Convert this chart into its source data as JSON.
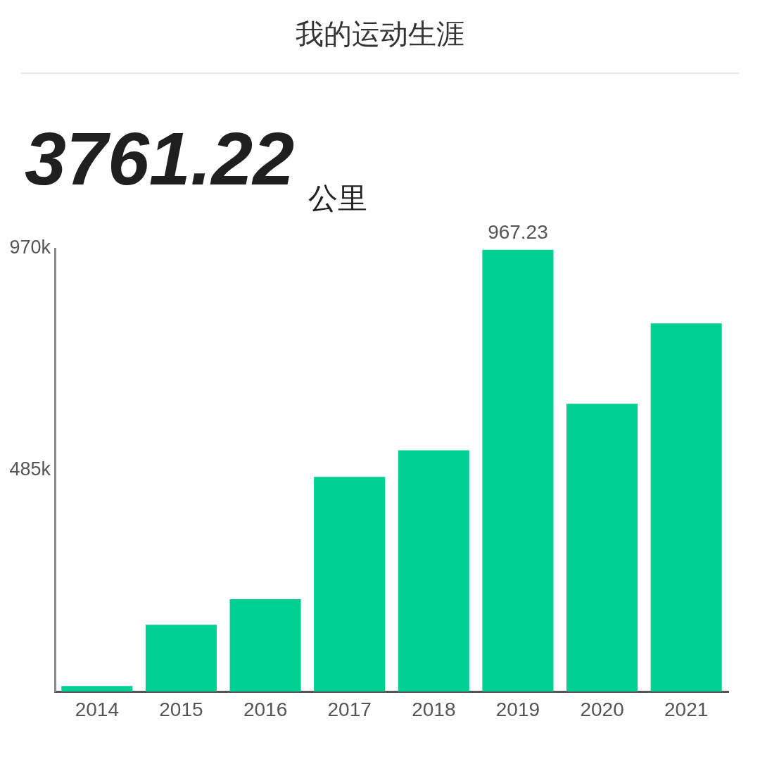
{
  "chart_data": {
    "type": "bar",
    "title": "我的运动生涯",
    "subtitle": "3761.22",
    "annotations": [
      "公里"
    ],
    "categories": [
      "2014",
      "2015",
      "2016",
      "2017",
      "2018",
      "2019",
      "2020",
      "2021"
    ],
    "values": [
      12,
      146,
      202,
      470,
      528,
      967.23,
      630,
      806
    ],
    "value_labels": [
      null,
      null,
      null,
      null,
      null,
      "967.23",
      null,
      null
    ],
    "color": "#00cf94",
    "ylim": [
      0,
      970
    ],
    "yticks": [
      {
        "value": 485,
        "label": "485k"
      },
      {
        "value": 970,
        "label": "970k"
      }
    ]
  }
}
